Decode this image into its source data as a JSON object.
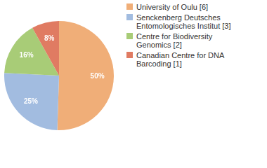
{
  "chart_data": {
    "type": "pie",
    "categories": [
      "University of Oulu [6]",
      "Senckenberg Deutsches Entomologisches Institut [3]",
      "Centre for Biodiversity Genomics [2]",
      "Canadian Centre for DNA Barcoding [1]"
    ],
    "values": [
      50,
      25,
      16,
      8
    ],
    "value_labels": [
      "50%",
      "25%",
      "16%",
      "8%"
    ],
    "colors": [
      "#f0ae78",
      "#a2bce0",
      "#a8cc77",
      "#e07b62"
    ],
    "data_labels": true,
    "legend": "top-right"
  }
}
